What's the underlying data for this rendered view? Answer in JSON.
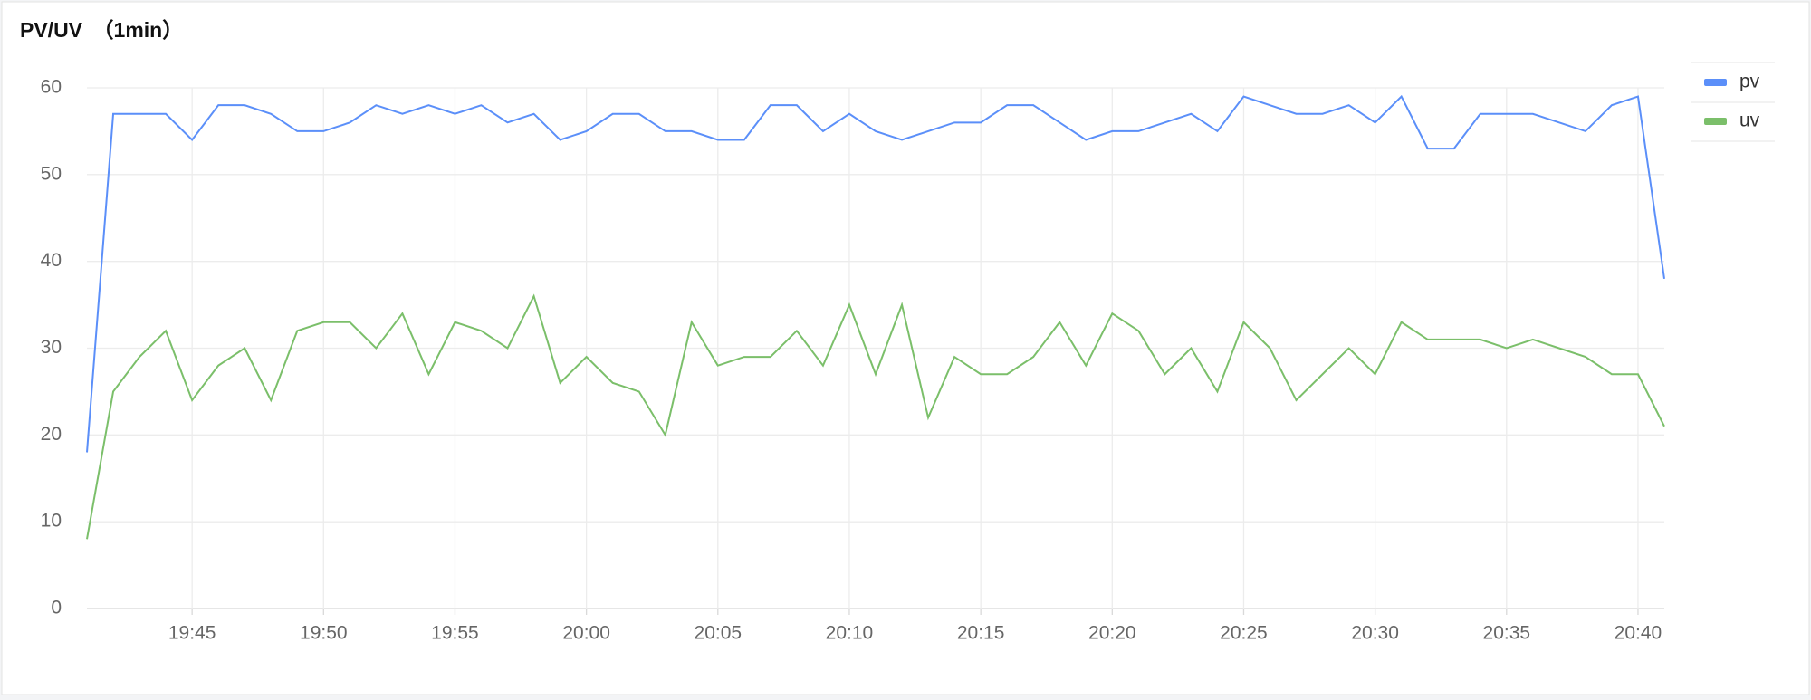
{
  "chart_data": {
    "type": "line",
    "title": "PV/UV　（1min）",
    "categories": [
      null,
      null,
      null,
      null,
      "19:45",
      null,
      null,
      null,
      null,
      "19:50",
      null,
      null,
      null,
      null,
      "19:55",
      null,
      null,
      null,
      null,
      "20:00",
      null,
      null,
      null,
      null,
      "20:05",
      null,
      null,
      null,
      null,
      "20:10",
      null,
      null,
      null,
      null,
      "20:15",
      null,
      null,
      null,
      null,
      "20:20",
      null,
      null,
      null,
      null,
      "20:25",
      null,
      null,
      null,
      null,
      "20:30",
      null,
      null,
      null,
      null,
      "20:35",
      null,
      null,
      null,
      null,
      "20:40",
      null
    ],
    "series": [
      {
        "name": "pv",
        "color": "#5b8ff9",
        "values": [
          18,
          57,
          57,
          57,
          54,
          58,
          58,
          57,
          55,
          55,
          56,
          58,
          57,
          58,
          57,
          58,
          56,
          57,
          54,
          55,
          57,
          57,
          55,
          55,
          54,
          54,
          58,
          58,
          55,
          57,
          55,
          54,
          55,
          56,
          56,
          58,
          58,
          56,
          54,
          55,
          55,
          56,
          57,
          55,
          59,
          58,
          57,
          57,
          58,
          56,
          59,
          53,
          53,
          57,
          57,
          57,
          56,
          55,
          58,
          59,
          38
        ]
      },
      {
        "name": "uv",
        "color": "#7bbf6a",
        "values": [
          8,
          25,
          29,
          32,
          24,
          28,
          30,
          24,
          32,
          33,
          33,
          30,
          34,
          27,
          33,
          32,
          30,
          36,
          26,
          29,
          26,
          25,
          20,
          33,
          28,
          29,
          29,
          32,
          28,
          35,
          27,
          35,
          22,
          29,
          27,
          27,
          29,
          33,
          28,
          34,
          32,
          27,
          30,
          25,
          33,
          30,
          24,
          27,
          30,
          27,
          33,
          31,
          31,
          31,
          30,
          31,
          30,
          29,
          27,
          27,
          21
        ]
      }
    ],
    "ylim": [
      0,
      60
    ],
    "yticks": [
      0,
      10,
      20,
      30,
      40,
      50,
      60
    ],
    "grid": true
  }
}
